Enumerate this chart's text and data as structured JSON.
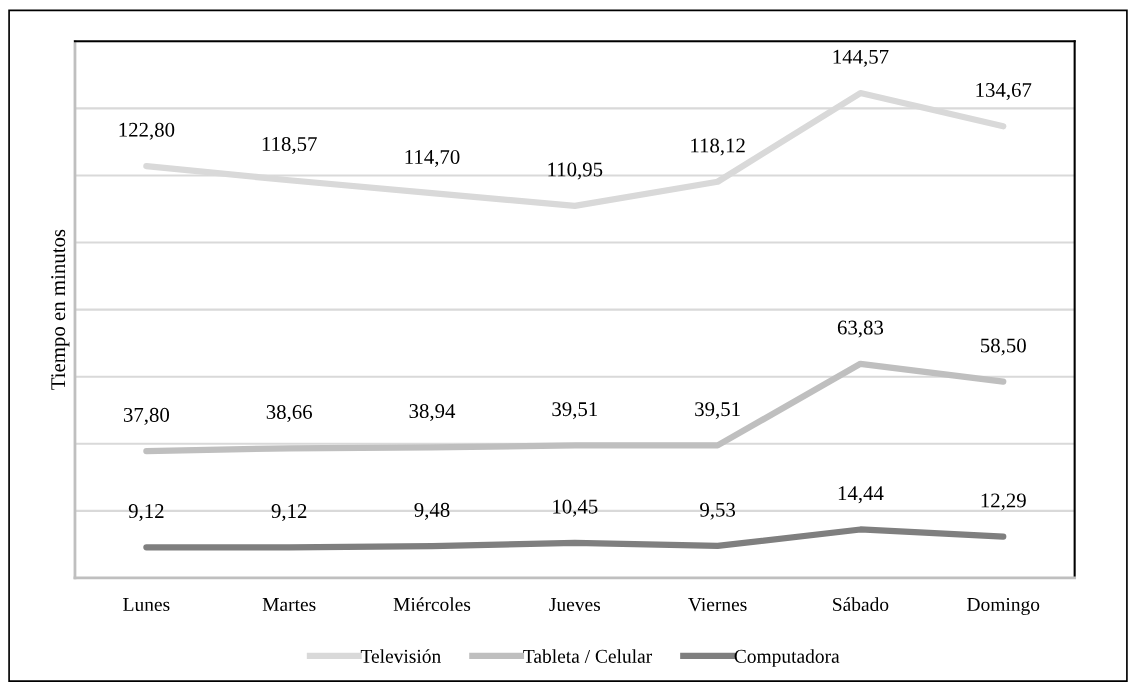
{
  "chart_data": {
    "type": "line",
    "ylabel": "Tiempo en minutos",
    "categories": [
      "Lunes",
      "Martes",
      "Miércoles",
      "Jueves",
      "Viernes",
      "Sábado",
      "Domingo"
    ],
    "series": [
      {
        "name": "Televisión",
        "color": "#d9d9d9",
        "values": [
          122.8,
          118.57,
          114.7,
          110.95,
          118.12,
          144.57,
          134.67
        ],
        "value_labels": [
          "122,80",
          "118,57",
          "114,70",
          "110,95",
          "118,12",
          "144,57",
          "134,67"
        ]
      },
      {
        "name": "Tableta / Celular",
        "color": "#bfbfbf",
        "values": [
          37.8,
          38.66,
          38.94,
          39.51,
          39.51,
          63.83,
          58.5
        ],
        "value_labels": [
          "37,80",
          "38,66",
          "38,94",
          "39,51",
          "39,51",
          "63,83",
          "58,50"
        ]
      },
      {
        "name": "Computadora",
        "color": "#7f7f7f",
        "values": [
          9.12,
          9.12,
          9.48,
          10.45,
          9.53,
          14.44,
          12.29
        ],
        "value_labels": [
          "9,12",
          "9,12",
          "9,48",
          "10,45",
          "9,53",
          "14,44",
          "12,29"
        ]
      }
    ],
    "ylim": [
      0,
      160
    ],
    "yticks": [
      {
        "value": 0,
        "label": null
      },
      {
        "value": 20,
        "label": null
      },
      {
        "value": 40,
        "label": null
      },
      {
        "value": 60,
        "label": null
      },
      {
        "value": 80,
        "label": null
      },
      {
        "value": 100,
        "label": null
      },
      {
        "value": 120,
        "label": null
      },
      {
        "value": 140,
        "label": null
      },
      {
        "value": 160,
        "label": null
      }
    ],
    "tick_labels": "x",
    "grid": "y",
    "legend": "bottom",
    "marker": "none",
    "line_style": "solid"
  }
}
